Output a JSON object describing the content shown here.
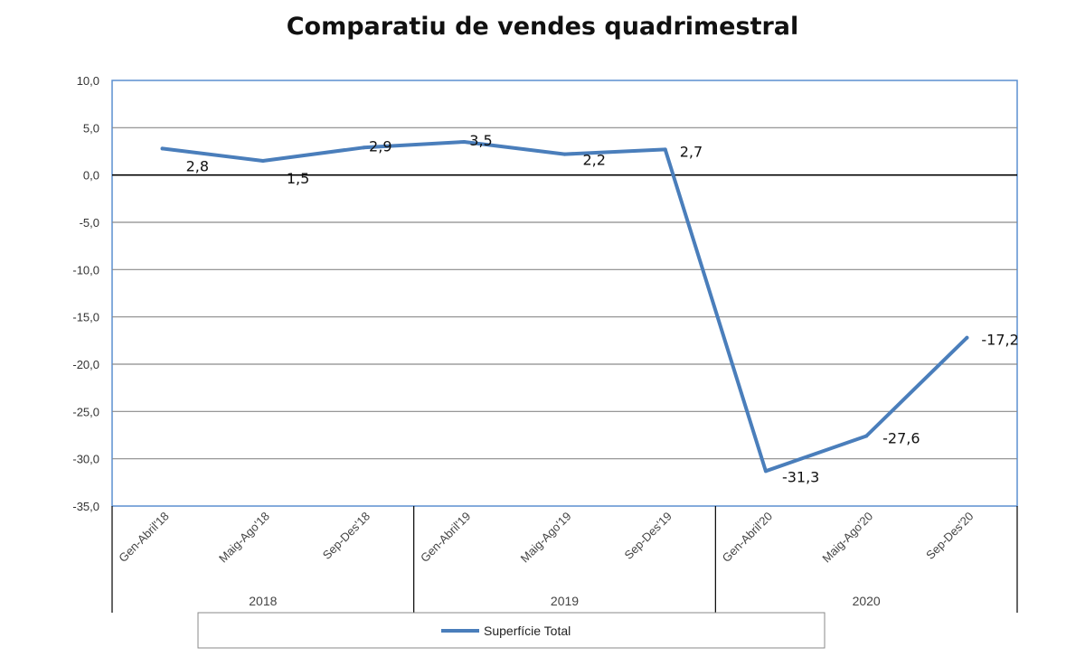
{
  "chart_data": {
    "type": "line",
    "title": "Comparatiu de vendes quadrimestral",
    "categories": [
      "Gen-Abril'18",
      "Maig-Ago'18",
      "Sep-Des'18",
      "Gen-Abril'19",
      "Maig-Ago'19",
      "Sep-Des'19",
      "Gen-Abril'20",
      "Maig-Ago'20",
      "Sep-Des'20"
    ],
    "groups": [
      {
        "label": "2018",
        "count": 3
      },
      {
        "label": "2019",
        "count": 3
      },
      {
        "label": "2020",
        "count": 3
      }
    ],
    "series": [
      {
        "name": "Superfície Total",
        "values": [
          2.8,
          1.5,
          2.9,
          3.5,
          2.2,
          2.7,
          -31.3,
          -27.6,
          -17.2
        ],
        "labels": [
          "2,8",
          "1,5",
          "2,9",
          "3,5",
          "2,2",
          "2,7",
          "-31,3",
          "-27,6",
          "-17,2"
        ],
        "color": "#4a7ebb"
      }
    ],
    "ylim": [
      -35,
      10
    ],
    "yticks": [
      10,
      5,
      0,
      -5,
      -10,
      -15,
      -20,
      -25,
      -30,
      -35
    ],
    "ytick_labels": [
      "10,0",
      "5,0",
      "0,0",
      "-5,0",
      "-10,0",
      "-15,0",
      "-20,0",
      "-25,0",
      "-30,0",
      "-35,0"
    ],
    "grid": true,
    "legend_position": "bottom"
  }
}
